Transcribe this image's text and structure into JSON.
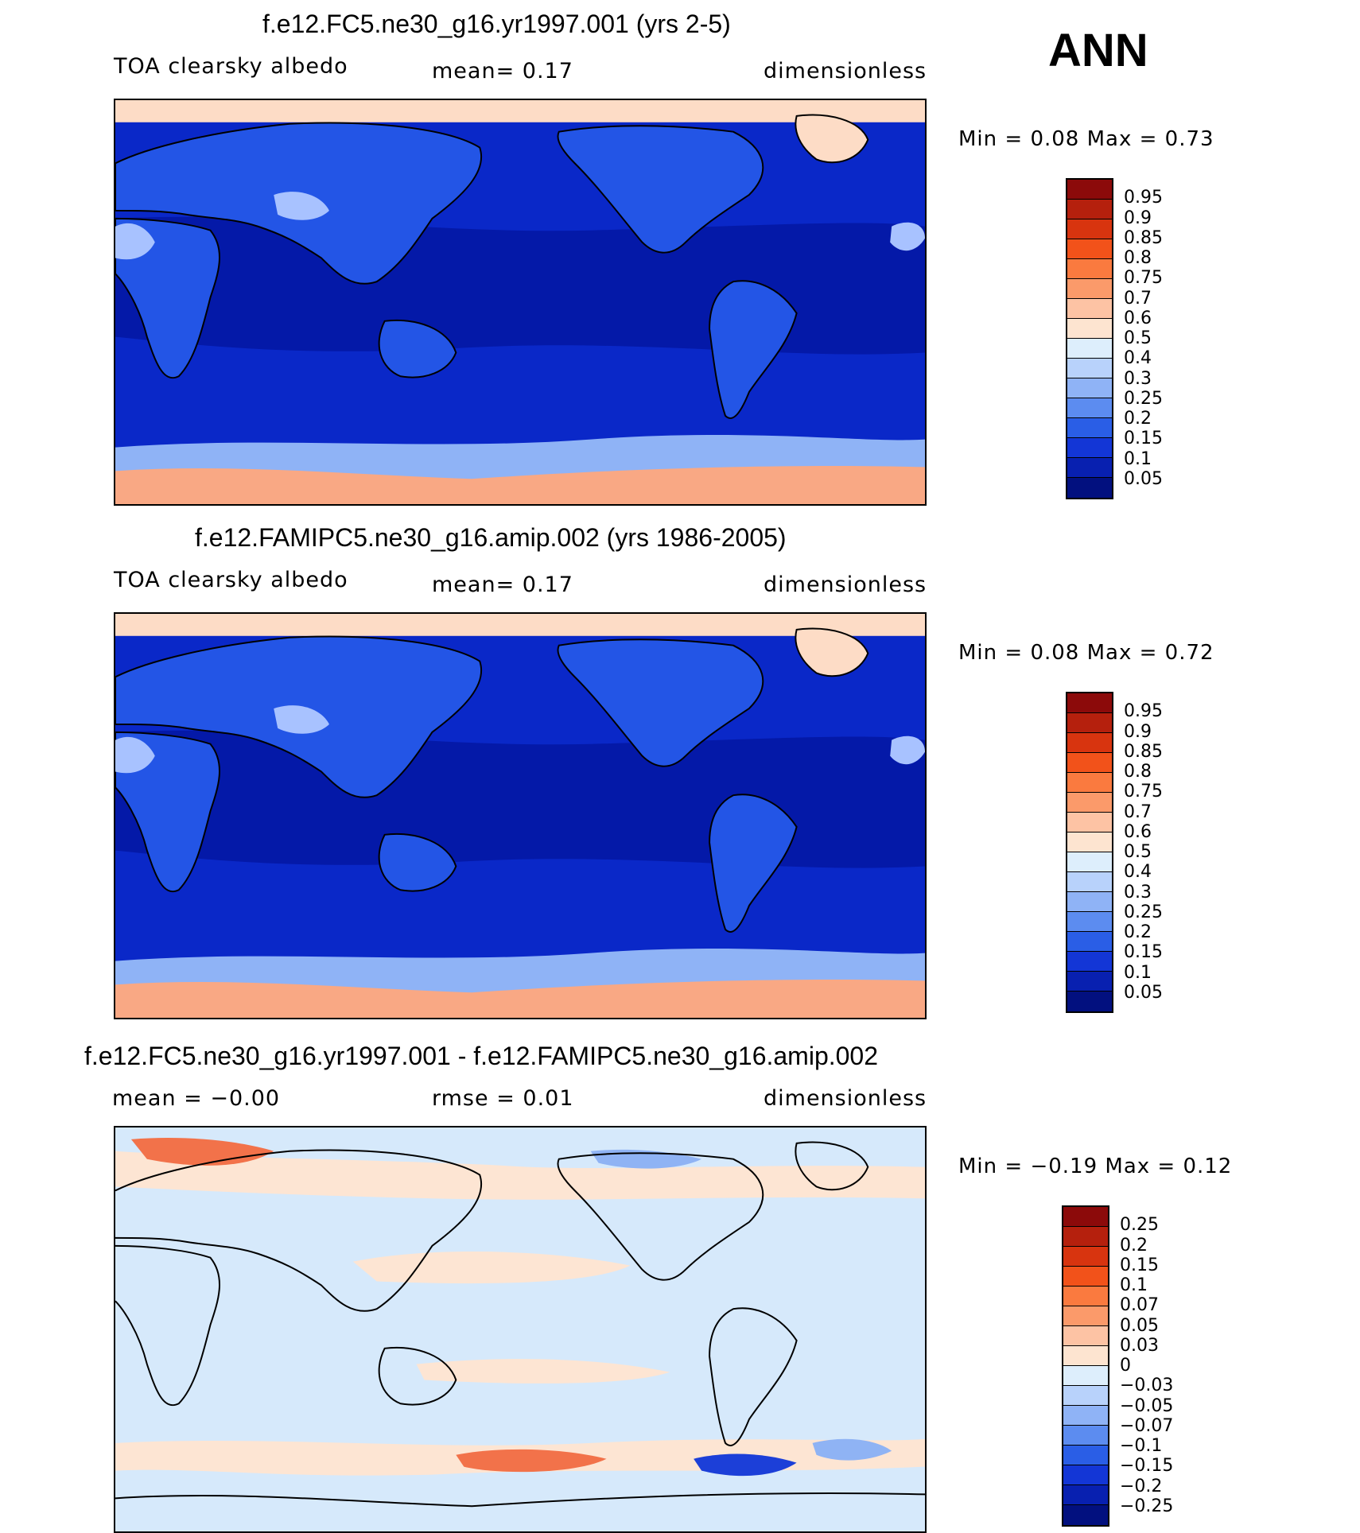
{
  "season": "ANN",
  "panels": [
    {
      "id": "test",
      "title": "f.e12.FC5.ne30_g16.yr1997.001 (yrs 2-5)",
      "left_label": "TOA clearsky albedo",
      "mid_label": "mean=     0.17",
      "units": "dimensionless",
      "minmax": "Min  =    0.08  Max  =    0.73",
      "map": {
        "ocean_color": "#0a28c8",
        "tropic_color": "#0419a8",
        "land_color": "#2355e6",
        "desert_color": "#a8c2ff",
        "north_polar_color": "#fddcc6",
        "antarctic_color": "#f9a884",
        "coastline_color": "#000000"
      }
    },
    {
      "id": "control",
      "title": "f.e12.FAMIPC5.ne30_g16.amip.002 (yrs 1986-2005)",
      "left_label": "TOA clearsky albedo",
      "mid_label": "mean=     0.17",
      "units": "dimensionless",
      "minmax": "Min  =    0.08  Max  =    0.72",
      "map": {
        "ocean_color": "#0a28c8",
        "tropic_color": "#0419a8",
        "land_color": "#2355e6",
        "desert_color": "#a8c2ff",
        "north_polar_color": "#fddcc6",
        "antarctic_color": "#f9a884",
        "coastline_color": "#000000"
      }
    },
    {
      "id": "diff",
      "title": "f.e12.FC5.ne30_g16.yr1997.001 - f.e12.FAMIPC5.ne30_g16.amip.002",
      "left_label": "mean  =   −0.00",
      "mid_label": "rmse  =    0.01",
      "units": "dimensionless",
      "minmax": "Min  =   −0.19  Max  =    0.12",
      "map": {
        "base_color": "#d6e9fb",
        "pos_light": "#fde5d3",
        "pos_strong": "#f2724a",
        "neg_light": "#8fb3f4",
        "neg_strong": "#1c3fd8",
        "coastline_color": "#000000"
      }
    }
  ],
  "colorbars": {
    "abs": {
      "labels": [
        "0.95",
        "0.9",
        "0.85",
        "0.8",
        "0.75",
        "0.7",
        "0.6",
        "0.5",
        "0.4",
        "0.3",
        "0.25",
        "0.2",
        "0.15",
        "0.1",
        "0.05"
      ],
      "colors": [
        "#8c0a0a",
        "#b5200d",
        "#d8340f",
        "#f2521a",
        "#fa7a3f",
        "#fb9a6a",
        "#fdc3a4",
        "#fde4d0",
        "#ddeefc",
        "#b8d2fb",
        "#8fb3f6",
        "#5c8cf0",
        "#2a5ee6",
        "#1336d6",
        "#0820b0",
        "#02107f"
      ]
    },
    "diff": {
      "labels": [
        "0.25",
        "0.2",
        "0.15",
        "0.1",
        "0.07",
        "0.05",
        "0.03",
        "0",
        "−0.03",
        "−0.05",
        "−0.07",
        "−0.1",
        "−0.15",
        "−0.2",
        "−0.25"
      ],
      "colors": [
        "#8c0a0a",
        "#b5200d",
        "#d8340f",
        "#f2521a",
        "#fa7a3f",
        "#fb9a6a",
        "#fdc3a4",
        "#fde4d0",
        "#ddeefc",
        "#b8d2fb",
        "#8fb3f6",
        "#5c8cf0",
        "#2a5ee6",
        "#1336d6",
        "#0820b0",
        "#02107f"
      ]
    }
  }
}
